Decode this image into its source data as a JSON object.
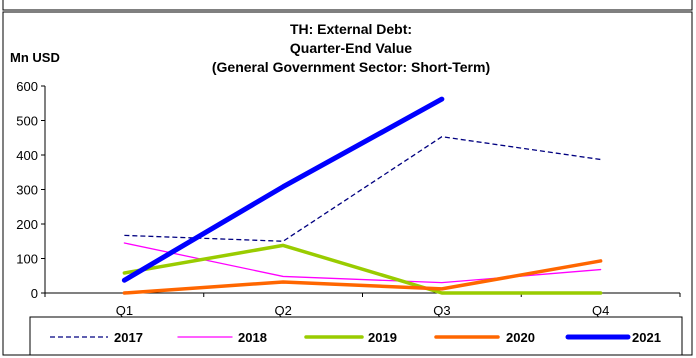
{
  "chart_data": {
    "type": "line",
    "title": [
      "TH: External Debt:",
      "Quarter-End Value",
      "(General Government Sector: Short-Term)"
    ],
    "ylabel": "Mn USD",
    "xlabel": "",
    "categories": [
      "Q1",
      "Q2",
      "Q3",
      "Q4"
    ],
    "ylim": [
      0,
      600
    ],
    "yticks": [
      0,
      100,
      200,
      300,
      400,
      500,
      600
    ],
    "grid": false,
    "legend_position": "bottom",
    "series": [
      {
        "name": "2017",
        "values": [
          167,
          150,
          453,
          387
        ],
        "color": "#000080",
        "style": "dashed"
      },
      {
        "name": "2018",
        "values": [
          145,
          48,
          30,
          68
        ],
        "color": "#ff00ff",
        "style": "solid"
      },
      {
        "name": "2019",
        "values": [
          58,
          138,
          0,
          0
        ],
        "color": "#99cc00",
        "style": "solid"
      },
      {
        "name": "2020",
        "values": [
          0,
          32,
          12,
          93
        ],
        "color": "#ff6600",
        "style": "solid"
      },
      {
        "name": "2021",
        "values": [
          37,
          308,
          562,
          null
        ],
        "color": "#0000ff",
        "style": "solid"
      }
    ]
  }
}
